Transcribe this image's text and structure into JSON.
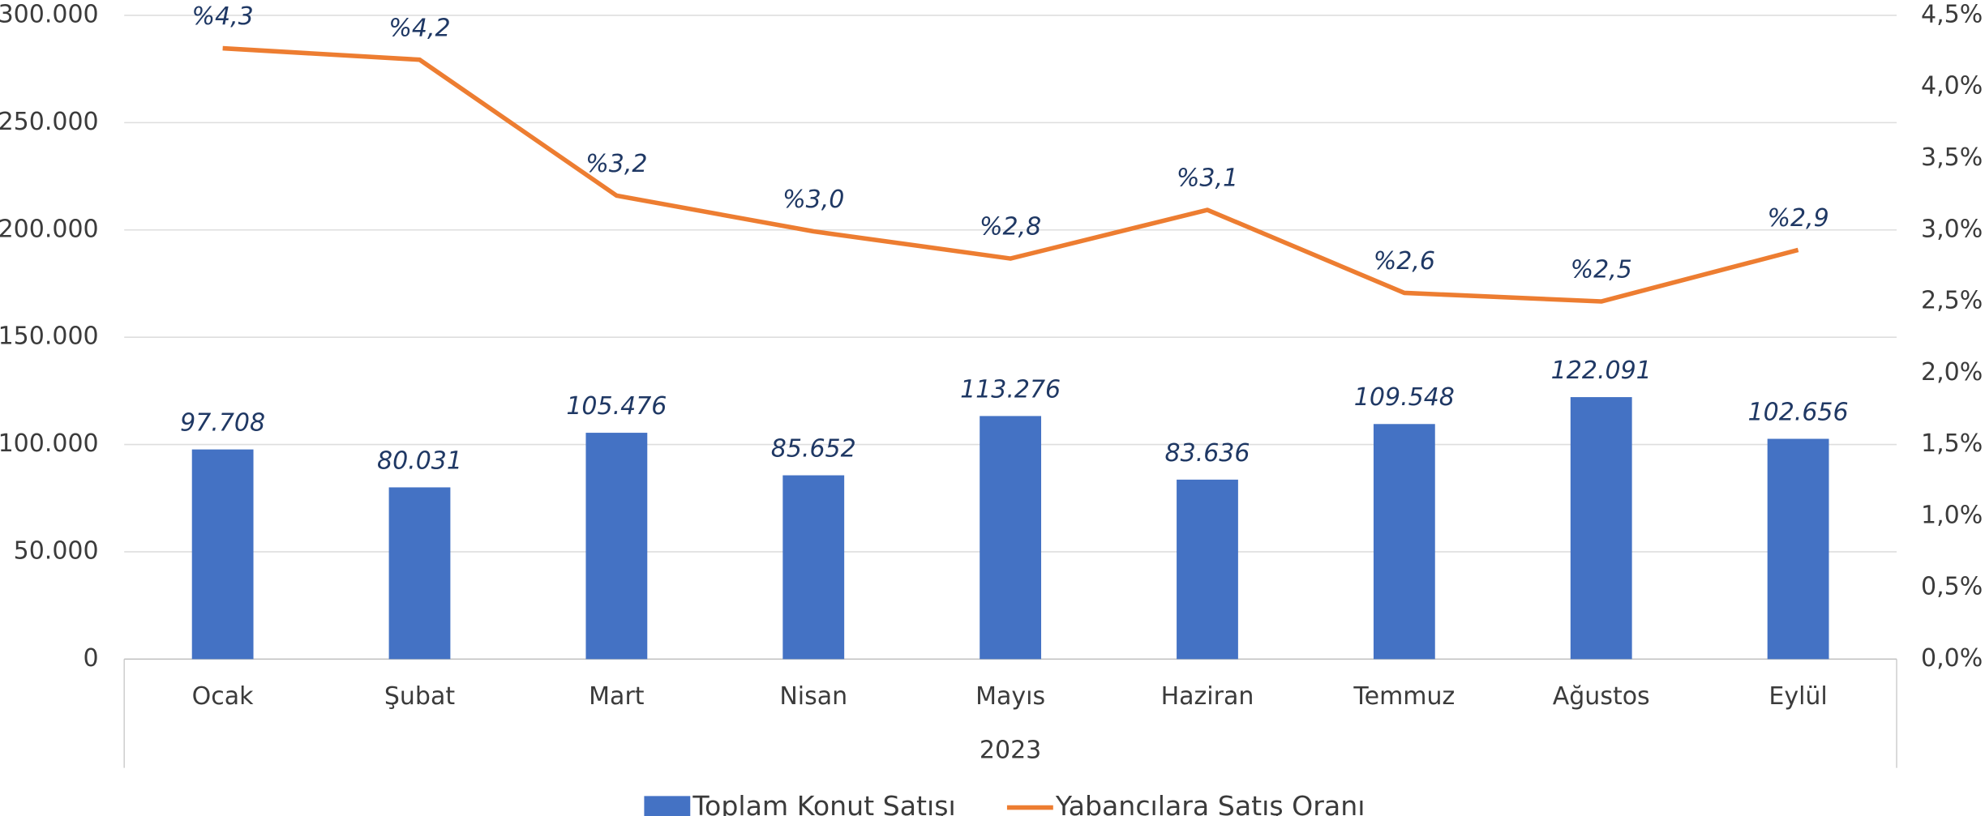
{
  "chart_data": {
    "type": "bar",
    "categories": [
      "Ocak",
      "Şubat",
      "Mart",
      "Nisan",
      "Mayıs",
      "Haziran",
      "Temmuz",
      "Ağustos",
      "Eylül"
    ],
    "x_group_label": "2023",
    "series": [
      {
        "name": "Toplam Konut Satışı",
        "color": "#4472c4",
        "values": [
          97708,
          80031,
          105476,
          85652,
          113276,
          83636,
          109548,
          122091,
          102656
        ],
        "value_labels": [
          "97.708",
          "80.031",
          "105.476",
          "85.652",
          "113.276",
          "83.636",
          "109.548",
          "122.091",
          "102.656"
        ]
      },
      {
        "name": "Yabancılara Satış Oranı",
        "color": "#ed7d31",
        "type": "line",
        "axis": "y2",
        "values": [
          4.27,
          4.19,
          3.24,
          2.99,
          2.8,
          3.14,
          2.56,
          2.5,
          2.86
        ],
        "value_labels": [
          "%4,3",
          "%4,2",
          "%3,2",
          "%3,0",
          "%2,8",
          "%3,1",
          "%2,6",
          "%2,5",
          "%2,9"
        ]
      }
    ],
    "ylim": [
      0,
      300000
    ],
    "yticks": [
      0,
      {
        "value": 50000,
        "label": "50.000"
      },
      {
        "value": 100000,
        "label": "100.000"
      },
      {
        "value": 150000,
        "label": "150.000"
      },
      {
        "value": 200000,
        "label": "200.000"
      },
      {
        "value": 250000,
        "label": "250.000"
      },
      {
        "value": 300000,
        "label": "300.000"
      }
    ],
    "y2lim": [
      0,
      4.5
    ],
    "y2ticks": [
      {
        "value": 0,
        "label": "0,0%"
      },
      {
        "value": 0.5,
        "label": "0,5%"
      },
      {
        "value": 1,
        "label": "1,0%"
      },
      {
        "value": 1.5,
        "label": "1,5%"
      },
      {
        "value": 2,
        "label": "2,0%"
      },
      {
        "value": 2.5,
        "label": "2,5%"
      },
      {
        "value": 3,
        "label": "3,0%"
      },
      {
        "value": 3.5,
        "label": "3,5%"
      },
      {
        "value": 4,
        "label": "4,0%"
      },
      {
        "value": 4.5,
        "label": "4,5%"
      }
    ],
    "grid": true,
    "legend": "bottom"
  }
}
